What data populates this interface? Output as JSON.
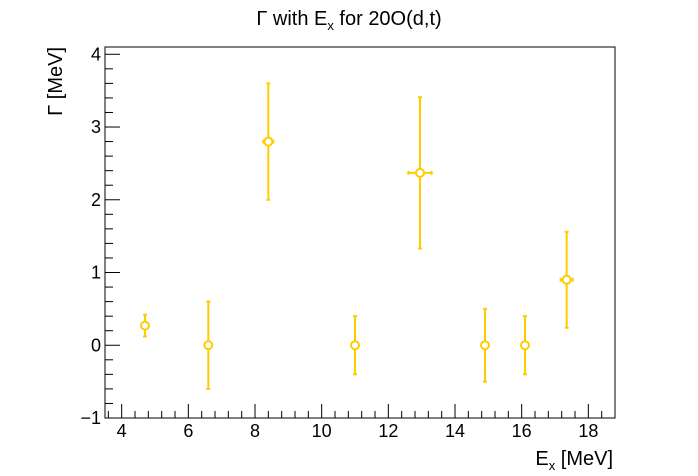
{
  "chart_data": {
    "type": "scatter",
    "title": {
      "main": "Γ with E",
      "sub": "x",
      "rest": " for 20O(d,t)"
    },
    "xlabel": {
      "main": "E",
      "sub": "x",
      "rest": " [MeV]"
    },
    "ylabel": "Γ [MeV]",
    "xlim": [
      3.5,
      18.8
    ],
    "ylim": [
      -1.0,
      4.1
    ],
    "x_ticks": [
      4,
      6,
      8,
      10,
      12,
      14,
      16,
      18
    ],
    "y_ticks": [
      -1,
      0,
      1,
      2,
      3,
      4
    ],
    "marker_color": "#ffcc00",
    "series": [
      {
        "points": [
          {
            "x": 4.7,
            "y": 0.27,
            "xerr": 0.1,
            "yerr": 0.15
          },
          {
            "x": 6.6,
            "y": 0.0,
            "xerr": 0.1,
            "yerr": 0.6
          },
          {
            "x": 8.4,
            "y": 2.8,
            "xerr": 0.15,
            "yerr": 0.8
          },
          {
            "x": 11.0,
            "y": 0.0,
            "xerr": 0.1,
            "yerr": 0.4
          },
          {
            "x": 12.95,
            "y": 2.37,
            "xerr": 0.35,
            "yerr": 1.04
          },
          {
            "x": 14.9,
            "y": 0.0,
            "xerr": 0.1,
            "yerr": 0.5
          },
          {
            "x": 16.1,
            "y": 0.0,
            "xerr": 0.1,
            "yerr": 0.4
          },
          {
            "x": 17.35,
            "y": 0.9,
            "xerr": 0.18,
            "yerr": 0.66
          }
        ]
      }
    ],
    "grid": false,
    "legend": "none"
  }
}
